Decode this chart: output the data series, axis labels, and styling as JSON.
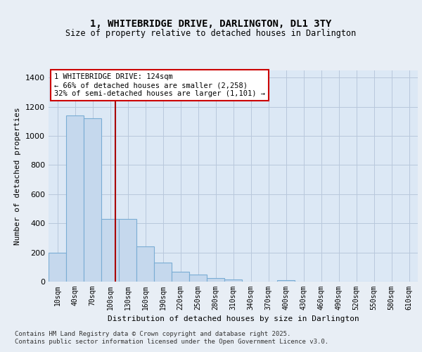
{
  "title": "1, WHITEBRIDGE DRIVE, DARLINGTON, DL1 3TY",
  "subtitle": "Size of property relative to detached houses in Darlington",
  "xlabel": "Distribution of detached houses by size in Darlington",
  "ylabel": "Number of detached properties",
  "categories": [
    "10sqm",
    "40sqm",
    "70sqm",
    "100sqm",
    "130sqm",
    "160sqm",
    "190sqm",
    "220sqm",
    "250sqm",
    "280sqm",
    "310sqm",
    "340sqm",
    "370sqm",
    "400sqm",
    "430sqm",
    "460sqm",
    "490sqm",
    "520sqm",
    "550sqm",
    "580sqm",
    "610sqm"
  ],
  "values": [
    200,
    1140,
    1120,
    430,
    430,
    240,
    130,
    70,
    50,
    25,
    15,
    0,
    0,
    10,
    0,
    0,
    0,
    0,
    0,
    0,
    0
  ],
  "bar_color": "#c5d8ed",
  "bar_edge_color": "#7aadd4",
  "vline_color": "#aa0000",
  "annotation_text": "1 WHITEBRIDGE DRIVE: 124sqm\n← 66% of detached houses are smaller (2,258)\n32% of semi-detached houses are larger (1,101) →",
  "annotation_box_edge": "#cc0000",
  "ylim": [
    0,
    1450
  ],
  "yticks": [
    0,
    200,
    400,
    600,
    800,
    1000,
    1200,
    1400
  ],
  "footnote1": "Contains HM Land Registry data © Crown copyright and database right 2025.",
  "footnote2": "Contains public sector information licensed under the Open Government Licence v3.0.",
  "background_color": "#e8eef5",
  "plot_bg_color": "#dce8f5",
  "grid_color": "#b8c8dc"
}
